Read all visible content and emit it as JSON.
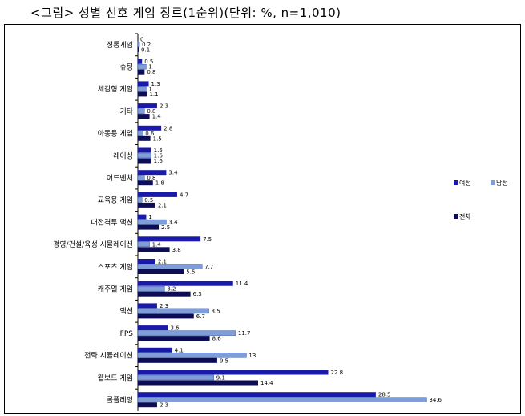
{
  "figure_title": "<그림> 성별 선호 게임 장르(1순위)(단위: %, n=1,010)",
  "chart_data": {
    "type": "bar",
    "orientation": "horizontal",
    "grid": false,
    "legend_position": "right",
    "categories": [
      "정통게임",
      "슈팅",
      "체감형 게임",
      "기타",
      "아동용 게임",
      "레이싱",
      "어드벤처",
      "교육용 게임",
      "대전격투 액션",
      "경영/건설/육성 시뮬레이션",
      "스포츠 게임",
      "캐주얼 게임",
      "액션",
      "FPS",
      "전략 시뮬레이션",
      "웹보드 게임",
      "롤플레잉"
    ],
    "series": [
      {
        "name": "여성",
        "color": "#1a1aa8",
        "values": [
          0,
          0.5,
          1.3,
          2.3,
          2.8,
          1.6,
          3.4,
          4.7,
          1,
          7.5,
          2.1,
          11.4,
          2.3,
          3.6,
          4.1,
          22.8,
          28.5
        ]
      },
      {
        "name": "남성",
        "color": "#7f9ed8",
        "values": [
          0.2,
          1,
          1,
          0.8,
          0.6,
          1.6,
          0.8,
          0.5,
          3.4,
          1.4,
          7.7,
          3.2,
          8.5,
          11.7,
          13,
          9.1,
          34.6
        ]
      },
      {
        "name": "전체",
        "color": "#0d0d55",
        "values": [
          0.1,
          0.8,
          1.1,
          1.4,
          1.5,
          1.6,
          1.8,
          2.1,
          2.5,
          3.8,
          5.5,
          6.3,
          6.7,
          8.6,
          9.5,
          14.4,
          2.3
        ]
      }
    ],
    "value_labels": [
      [
        "0",
        "0.2",
        "0.1"
      ],
      [
        "0.5",
        "1",
        "0.8"
      ],
      [
        "1.3",
        "1",
        "1.1"
      ],
      [
        "2.3",
        "0.8",
        "1.4"
      ],
      [
        "2.8",
        "0.6",
        "1.5"
      ],
      [
        "1.6",
        "1.6",
        "1.6"
      ],
      [
        "3.4",
        "0.8",
        "1.8"
      ],
      [
        "4.7",
        "0.5",
        "2.1"
      ],
      [
        "1",
        "3.4",
        "2.5"
      ],
      [
        "7.5",
        "1.4",
        "3.8"
      ],
      [
        "2.1",
        "7.7",
        "5.5"
      ],
      [
        "11.4",
        "3.2",
        "6.3"
      ],
      [
        "2.3",
        "8.5",
        "6.7"
      ],
      [
        "3.6",
        "11.7",
        "8.6"
      ],
      [
        "4.1",
        "13",
        "9.5"
      ],
      [
        "22.8",
        "9.1",
        "14.4"
      ],
      [
        "28.5",
        "34.6",
        "2.3"
      ]
    ],
    "xlim": [
      0,
      36
    ]
  }
}
